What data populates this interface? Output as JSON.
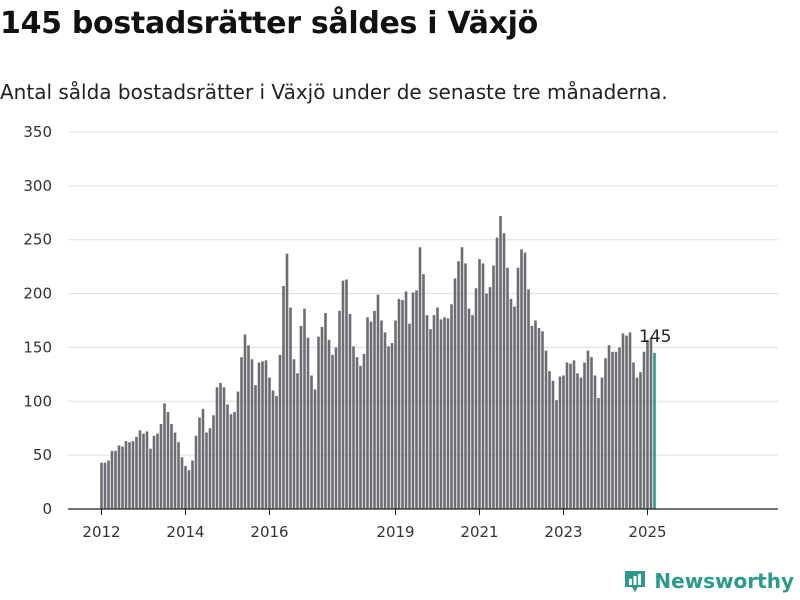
{
  "header": {
    "title": "145 bostadsrätter såldes i Växjö",
    "subtitle": "Antal sålda bostadsrätter i Växjö under de senaste tre månaderna."
  },
  "brand": {
    "name": "Newsworthy",
    "icon": "chart-logo-icon"
  },
  "colors": {
    "bar": "#6d6c73",
    "highlight": "#2a9a8c",
    "grid": "#dddddd"
  },
  "chart_data": {
    "type": "bar",
    "title": "",
    "xlabel": "",
    "ylabel": "",
    "ylim": [
      0,
      350
    ],
    "yticks": [
      0,
      50,
      100,
      150,
      200,
      250,
      300,
      350
    ],
    "xticks": [
      "2012",
      "2014",
      "2016",
      "2019",
      "2021",
      "2023",
      "2025"
    ],
    "grid": true,
    "annotation": "145",
    "series": [
      {
        "values": [
          43,
          43,
          45,
          54,
          54,
          59,
          58,
          63,
          62,
          63,
          67,
          73,
          70,
          72,
          56,
          68,
          70,
          79,
          98,
          90,
          79,
          71,
          62,
          48,
          40,
          36,
          45,
          68,
          85,
          93,
          71,
          75,
          87,
          113,
          117,
          113,
          97,
          88,
          90,
          109,
          141,
          162,
          152,
          139,
          115,
          136,
          137,
          138,
          122,
          110,
          105,
          143,
          207,
          237,
          187,
          139,
          126,
          170,
          186,
          159,
          124,
          111,
          160,
          169,
          182,
          157,
          143,
          150,
          184,
          212,
          213,
          181,
          151,
          141,
          133,
          144,
          178,
          174,
          184,
          199,
          175,
          164,
          151,
          154,
          175,
          195,
          194,
          202,
          172,
          201,
          203,
          243,
          218,
          180,
          167,
          180,
          187,
          176,
          178,
          177,
          190,
          214,
          230,
          243,
          228,
          186,
          180,
          205,
          232,
          228,
          200,
          206,
          226,
          252,
          272,
          256,
          224,
          195,
          188,
          224,
          241,
          238,
          204,
          170,
          175,
          168,
          165,
          147,
          128,
          119,
          101,
          123,
          124,
          136,
          135,
          138,
          126,
          122,
          136,
          147,
          141,
          124,
          103,
          122,
          140,
          152,
          146,
          146,
          150,
          163,
          161,
          164,
          136,
          122,
          127,
          146,
          157,
          159,
          145
        ]
      }
    ]
  }
}
